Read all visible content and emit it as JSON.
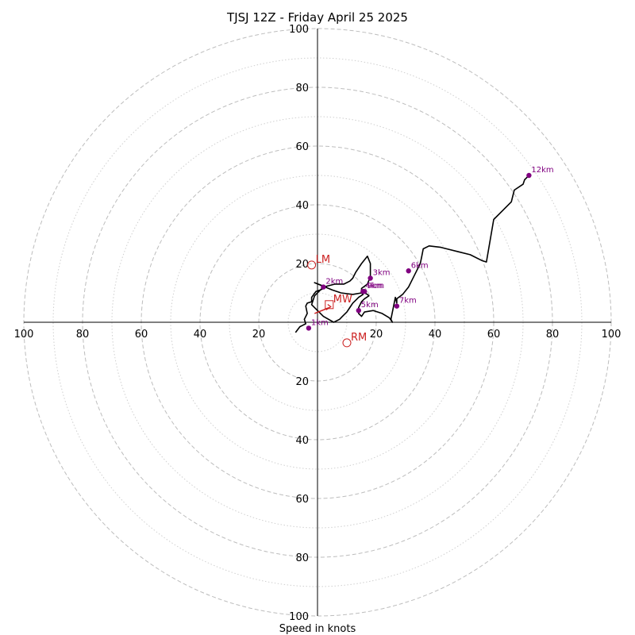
{
  "chart_data": {
    "type": "hodograph",
    "title": "TJSJ 12Z - Friday April 25 2025",
    "xlabel": "Speed in knots",
    "max_speed": 100,
    "ring_step_major": 20,
    "ring_step_minor": 10,
    "ticks": [
      {
        "v": 100,
        "label": "100"
      },
      {
        "v": 80,
        "label": "80"
      },
      {
        "v": 60,
        "label": "60"
      },
      {
        "v": 40,
        "label": "40"
      },
      {
        "v": 20,
        "label": "20"
      }
    ],
    "profile": [
      [
        -7.5,
        -3.5
      ],
      [
        -6,
        -1.5
      ],
      [
        -4,
        -0.5
      ],
      [
        -4.5,
        1
      ],
      [
        -3.5,
        3
      ],
      [
        -4,
        5.5
      ],
      [
        -3.5,
        6.5
      ],
      [
        -2,
        7
      ],
      [
        -2,
        8.5
      ],
      [
        -0.5,
        10.5
      ],
      [
        1,
        11
      ],
      [
        2,
        11.5
      ],
      [
        3,
        12
      ],
      [
        1.5,
        12.5
      ],
      [
        -1,
        13.5
      ],
      [
        5,
        11
      ],
      [
        8,
        10
      ],
      [
        12,
        9.5
      ],
      [
        15,
        10
      ],
      [
        15.5,
        9.5
      ],
      [
        14,
        8.5
      ],
      [
        13,
        7.5
      ],
      [
        12,
        6.5
      ],
      [
        11,
        5
      ],
      [
        10,
        3.5
      ],
      [
        8.5,
        2
      ],
      [
        7.5,
        1
      ],
      [
        5.5,
        0
      ],
      [
        2,
        2
      ],
      [
        0,
        4
      ],
      [
        -2,
        6
      ],
      [
        -1,
        9
      ],
      [
        2,
        12
      ],
      [
        6,
        13
      ],
      [
        9,
        13
      ],
      [
        11,
        14
      ],
      [
        12,
        15
      ],
      [
        13,
        17
      ],
      [
        15,
        20
      ],
      [
        17,
        22.5
      ],
      [
        18,
        20
      ],
      [
        18,
        15.5
      ],
      [
        17,
        13
      ],
      [
        15,
        11.5
      ],
      [
        15,
        10.5
      ],
      [
        17,
        9.5
      ],
      [
        17.5,
        9
      ],
      [
        16,
        8
      ],
      [
        15,
        7
      ],
      [
        14,
        5
      ],
      [
        14,
        3
      ],
      [
        15,
        2
      ],
      [
        16,
        3.5
      ],
      [
        19,
        4
      ],
      [
        22,
        3
      ],
      [
        24.5,
        1.5
      ],
      [
        25.5,
        0
      ],
      [
        25,
        1
      ],
      [
        26.5,
        8.5
      ],
      [
        27,
        6.5
      ],
      [
        27,
        8
      ],
      [
        29,
        9.5
      ],
      [
        31,
        12
      ],
      [
        33,
        16
      ],
      [
        35,
        20
      ],
      [
        35.5,
        22.5
      ],
      [
        36,
        25
      ],
      [
        38,
        26
      ],
      [
        42,
        25.5
      ],
      [
        44,
        25
      ],
      [
        48,
        24
      ],
      [
        52,
        23
      ],
      [
        56,
        21
      ],
      [
        57.5,
        20.5
      ],
      [
        60,
        35
      ],
      [
        63,
        38
      ],
      [
        66,
        41
      ],
      [
        67,
        45
      ],
      [
        70,
        47
      ],
      [
        70.5,
        48.5
      ],
      [
        71,
        49
      ],
      [
        72,
        50
      ]
    ],
    "height_markers": [
      {
        "label": "1km",
        "u": -3,
        "v": -2
      },
      {
        "label": "2km",
        "u": 2,
        "v": 12
      },
      {
        "label": "3km",
        "u": 18,
        "v": 15
      },
      {
        "label": "4km",
        "u": 15.5,
        "v": 10.5
      },
      {
        "label": "5km",
        "u": 14,
        "v": 4
      },
      {
        "label": "6km",
        "u": 31,
        "v": 17.5
      },
      {
        "label": "7km",
        "u": 27,
        "v": 5.5
      },
      {
        "label": "9km",
        "u": 16,
        "v": 10.5
      },
      {
        "label": "12km",
        "u": 72,
        "v": 50
      }
    ],
    "storm_motion": [
      {
        "label": "LM",
        "u": -2,
        "v": 19.5,
        "marker": "circle"
      },
      {
        "label": "RM",
        "u": 10,
        "v": -7,
        "marker": "circle"
      },
      {
        "label": "MW",
        "u": 4,
        "v": 6,
        "marker": "square"
      }
    ],
    "shear_vector": {
      "from": [
        -1,
        3
      ],
      "to": [
        4,
        5
      ]
    },
    "colors": {
      "profile": "#000000",
      "height_markers": "#800080",
      "storm_motion": "#cc2222",
      "grid": "#bdbdbd"
    }
  }
}
